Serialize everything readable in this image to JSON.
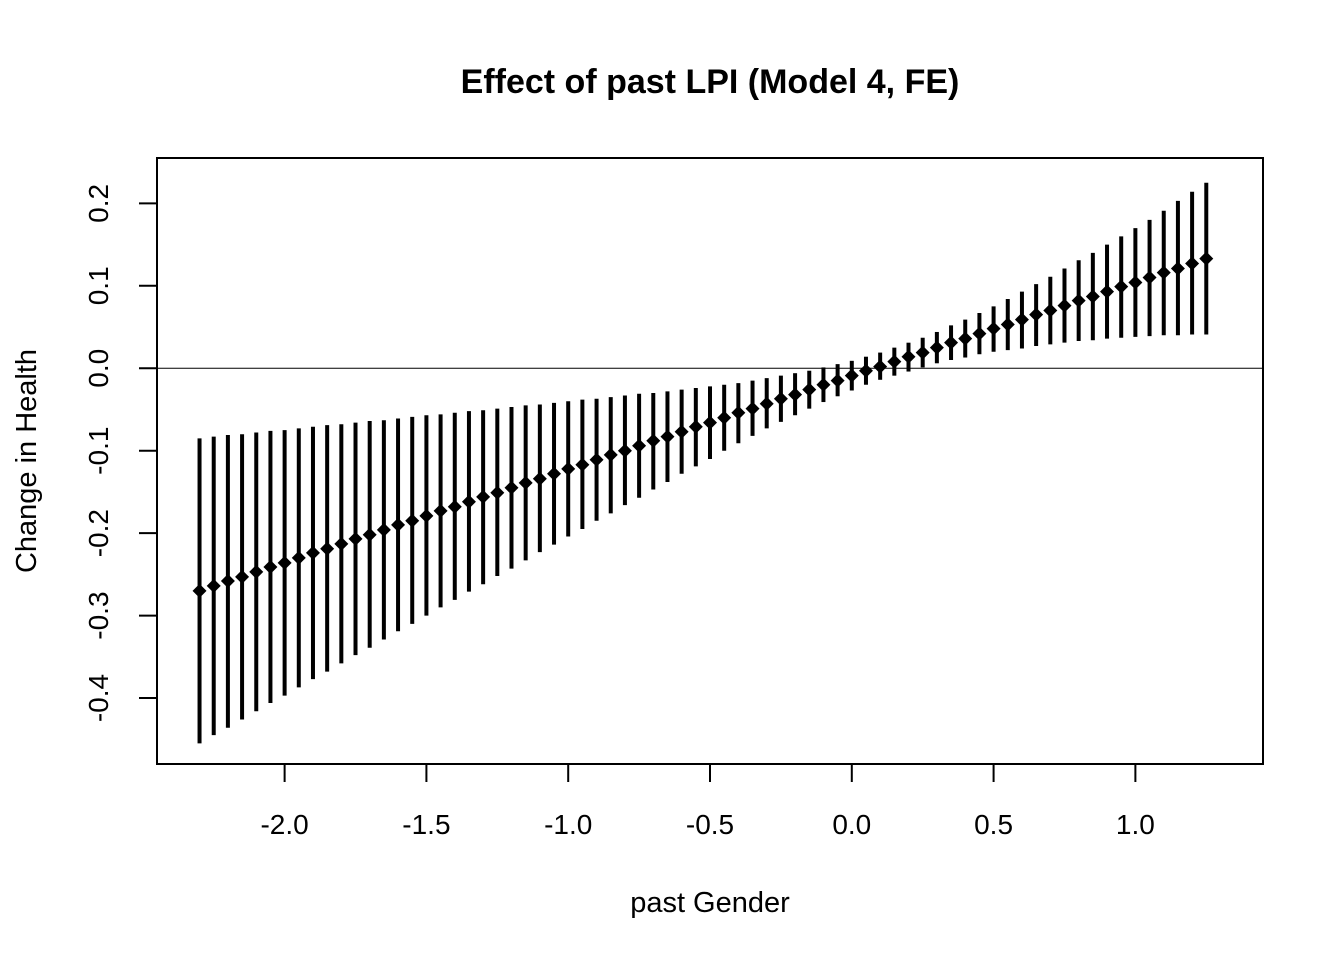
{
  "chart_data": {
    "type": "scatter",
    "title": "Effect of past LPI (Model 4, FE)",
    "xlabel": "past Gender",
    "ylabel": "Change in Health",
    "xlim": [
      -2.45,
      1.45
    ],
    "ylim": [
      -0.48,
      0.255
    ],
    "xticks": [
      -2.0,
      -1.5,
      -1.0,
      -0.5,
      0.0,
      0.5,
      1.0
    ],
    "xtick_labels": [
      "-2.0",
      "-1.5",
      "-1.0",
      "-0.5",
      "0.0",
      "0.5",
      "1.0"
    ],
    "yticks": [
      -0.4,
      -0.3,
      -0.2,
      -0.1,
      0.0,
      0.1,
      0.2
    ],
    "ytick_labels": [
      "-0.4",
      "-0.3",
      "-0.2",
      "-0.1",
      "0.0",
      "0.1",
      "0.2"
    ],
    "reference_line_y": 0.0,
    "grid": false,
    "x_start": -2.3,
    "x_step": 0.05,
    "estimates": [
      -0.27,
      -0.264,
      -0.258,
      -0.253,
      -0.247,
      -0.241,
      -0.236,
      -0.23,
      -0.224,
      -0.219,
      -0.213,
      -0.207,
      -0.202,
      -0.196,
      -0.19,
      -0.185,
      -0.179,
      -0.173,
      -0.168,
      -0.162,
      -0.156,
      -0.151,
      -0.145,
      -0.139,
      -0.134,
      -0.128,
      -0.122,
      -0.117,
      -0.111,
      -0.105,
      -0.1,
      -0.094,
      -0.088,
      -0.083,
      -0.077,
      -0.071,
      -0.066,
      -0.06,
      -0.054,
      -0.049,
      -0.043,
      -0.037,
      -0.032,
      -0.026,
      -0.02,
      -0.015,
      -0.009,
      -0.003,
      0.002,
      0.008,
      0.014,
      0.019,
      0.025,
      0.031,
      0.036,
      0.042,
      0.048,
      0.053,
      0.059,
      0.065,
      0.07,
      0.076,
      0.082,
      0.087,
      0.093,
      0.099,
      0.104,
      0.11,
      0.116,
      0.121,
      0.127,
      0.133
    ],
    "upper": [
      -0.085,
      -0.083,
      -0.081,
      -0.08,
      -0.078,
      -0.076,
      -0.075,
      -0.073,
      -0.071,
      -0.069,
      -0.068,
      -0.066,
      -0.064,
      -0.063,
      -0.061,
      -0.059,
      -0.057,
      -0.056,
      -0.054,
      -0.052,
      -0.051,
      -0.049,
      -0.047,
      -0.045,
      -0.044,
      -0.042,
      -0.04,
      -0.038,
      -0.037,
      -0.035,
      -0.033,
      -0.031,
      -0.03,
      -0.028,
      -0.026,
      -0.024,
      -0.022,
      -0.02,
      -0.018,
      -0.015,
      -0.012,
      -0.009,
      -0.006,
      -0.003,
      0.001,
      0.005,
      0.009,
      0.014,
      0.019,
      0.025,
      0.031,
      0.037,
      0.044,
      0.052,
      0.059,
      0.067,
      0.075,
      0.084,
      0.093,
      0.102,
      0.111,
      0.121,
      0.131,
      0.14,
      0.15,
      0.16,
      0.17,
      0.18,
      0.191,
      0.203,
      0.214,
      0.225
    ],
    "lower": [
      -0.455,
      -0.445,
      -0.436,
      -0.426,
      -0.416,
      -0.406,
      -0.397,
      -0.387,
      -0.377,
      -0.368,
      -0.358,
      -0.348,
      -0.339,
      -0.329,
      -0.319,
      -0.31,
      -0.3,
      -0.29,
      -0.281,
      -0.271,
      -0.262,
      -0.252,
      -0.243,
      -0.233,
      -0.223,
      -0.214,
      -0.204,
      -0.195,
      -0.185,
      -0.176,
      -0.166,
      -0.157,
      -0.147,
      -0.138,
      -0.128,
      -0.119,
      -0.11,
      -0.1,
      -0.091,
      -0.082,
      -0.073,
      -0.065,
      -0.057,
      -0.049,
      -0.041,
      -0.034,
      -0.027,
      -0.02,
      -0.014,
      -0.009,
      -0.004,
      0.001,
      0.006,
      0.01,
      0.013,
      0.017,
      0.02,
      0.022,
      0.024,
      0.027,
      0.029,
      0.031,
      0.033,
      0.034,
      0.036,
      0.037,
      0.038,
      0.039,
      0.04,
      0.04,
      0.041,
      0.041
    ]
  }
}
